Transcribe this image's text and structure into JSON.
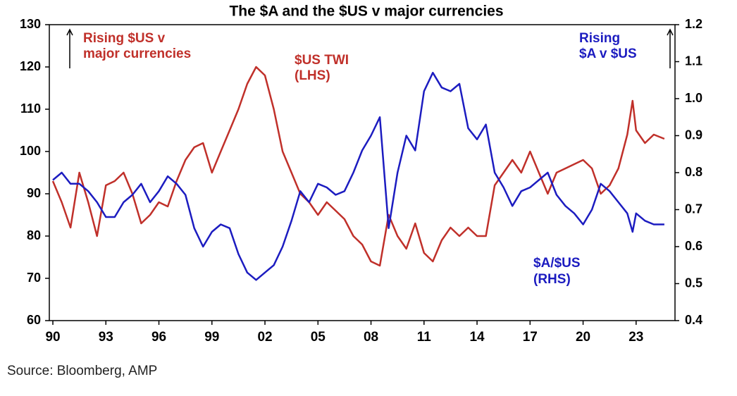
{
  "chart_data": {
    "type": "line",
    "title": "The $A and the $US v major currencies",
    "source": "Source: Bloomberg, AMP",
    "x": [
      1990,
      1990.5,
      1991,
      1991.5,
      1992,
      1992.5,
      1993,
      1993.5,
      1994,
      1994.5,
      1995,
      1995.5,
      1996,
      1996.5,
      1997,
      1997.5,
      1998,
      1998.5,
      1999,
      1999.5,
      2000,
      2000.5,
      2001,
      2001.5,
      2002,
      2002.5,
      2003,
      2003.5,
      2004,
      2004.5,
      2005,
      2005.5,
      2006,
      2006.5,
      2007,
      2007.5,
      2008,
      2008.5,
      2009,
      2009.5,
      2010,
      2010.5,
      2011,
      2011.5,
      2012,
      2012.5,
      2013,
      2013.5,
      2014,
      2014.5,
      2015,
      2015.5,
      2016,
      2016.5,
      2017,
      2017.5,
      2018,
      2018.5,
      2019,
      2019.5,
      2020,
      2020.5,
      2021,
      2021.5,
      2022,
      2022.5,
      2022.8,
      2023,
      2023.5,
      2024,
      2024.6
    ],
    "series": [
      {
        "name": "$US TWI (LHS)",
        "color": "#c0302a",
        "values": [
          93,
          88,
          82,
          95,
          88,
          80,
          92,
          93,
          95,
          90,
          83,
          85,
          88,
          87,
          93,
          98,
          101,
          102,
          95,
          100,
          105,
          110,
          116,
          120,
          118,
          110,
          100,
          95,
          90,
          88,
          85,
          88,
          86,
          84,
          80,
          78,
          74,
          73,
          85,
          80,
          77,
          83,
          76,
          74,
          79,
          82,
          80,
          82,
          80,
          80,
          92,
          95,
          98,
          95,
          100,
          95,
          90,
          95,
          96,
          97,
          98,
          96,
          90,
          92,
          96,
          104,
          112,
          105,
          102,
          104,
          103
        ]
      },
      {
        "name": "$A/$US (RHS)",
        "color": "#1c1cc0",
        "axis": "y2",
        "values": [
          0.78,
          0.8,
          0.77,
          0.77,
          0.75,
          0.72,
          0.68,
          0.68,
          0.72,
          0.74,
          0.77,
          0.72,
          0.75,
          0.79,
          0.77,
          0.74,
          0.65,
          0.6,
          0.64,
          0.66,
          0.65,
          0.58,
          0.53,
          0.51,
          0.53,
          0.55,
          0.6,
          0.67,
          0.75,
          0.72,
          0.77,
          0.76,
          0.74,
          0.75,
          0.8,
          0.86,
          0.9,
          0.95,
          0.65,
          0.8,
          0.9,
          0.86,
          1.02,
          1.07,
          1.03,
          1.02,
          1.04,
          0.92,
          0.89,
          0.93,
          0.8,
          0.76,
          0.71,
          0.75,
          0.76,
          0.78,
          0.8,
          0.74,
          0.71,
          0.69,
          0.66,
          0.7,
          0.77,
          0.75,
          0.72,
          0.69,
          0.64,
          0.69,
          0.67,
          0.66,
          0.66
        ]
      }
    ],
    "xlim": [
      1989.8,
      2025.2
    ],
    "xticks": [
      {
        "value": 1990,
        "label": "90"
      },
      {
        "value": 1993,
        "label": "93"
      },
      {
        "value": 1996,
        "label": "96"
      },
      {
        "value": 1999,
        "label": "99"
      },
      {
        "value": 2002,
        "label": "02"
      },
      {
        "value": 2005,
        "label": "05"
      },
      {
        "value": 2008,
        "label": "08"
      },
      {
        "value": 2011,
        "label": "11"
      },
      {
        "value": 2014,
        "label": "14"
      },
      {
        "value": 2017,
        "label": "17"
      },
      {
        "value": 2020,
        "label": "20"
      },
      {
        "value": 2023,
        "label": "23"
      }
    ],
    "ylim": [
      60,
      130
    ],
    "yticks": [
      60,
      70,
      80,
      90,
      100,
      110,
      120,
      130
    ],
    "y2lim": [
      0.4,
      1.2
    ],
    "y2ticks": [
      0.4,
      0.5,
      0.6,
      0.7,
      0.8,
      0.9,
      {
        "value": 1,
        "label": "1.0"
      },
      1.1,
      1.2
    ],
    "annotations": [
      {
        "lines": [
          "Rising $US v",
          "major currencies"
        ]
      },
      {
        "lines": [
          "$US TWI",
          "(LHS)"
        ]
      },
      {
        "lines": [
          "Rising",
          "$A v $US"
        ]
      },
      {
        "lines": [
          "$A/$US",
          "(RHS)"
        ]
      }
    ]
  }
}
